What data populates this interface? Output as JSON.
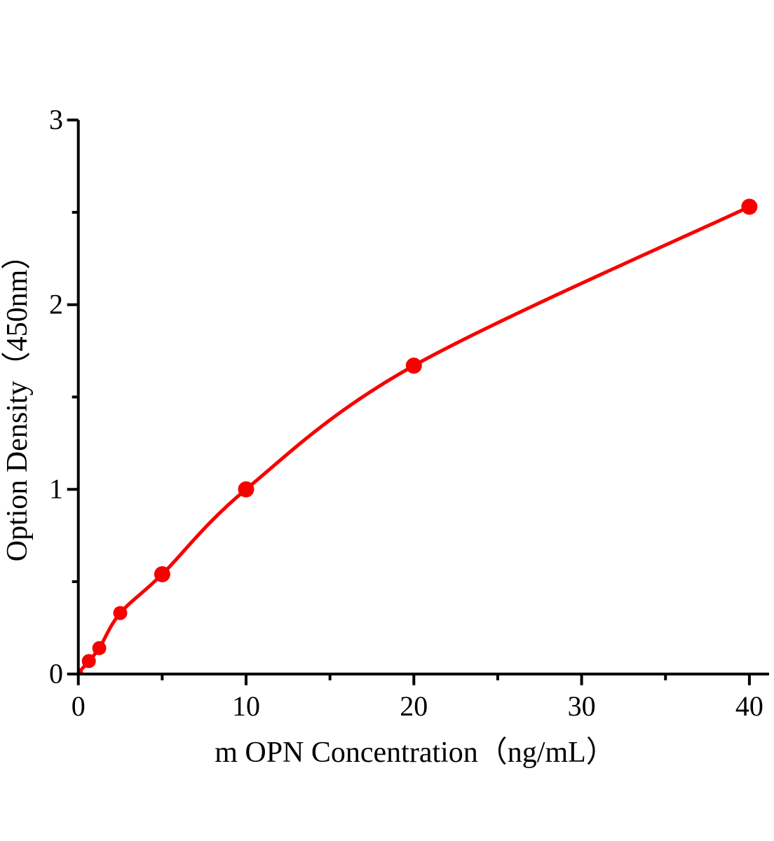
{
  "chart_data": {
    "type": "line",
    "title": "",
    "xlabel": "m OPN Concentration（ng/mL）",
    "ylabel": "Option Density（450nm）",
    "x": [
      0,
      0.625,
      1.25,
      2.5,
      5,
      10,
      20,
      40
    ],
    "series": [
      {
        "values": [
          0.005,
          0.07,
          0.14,
          0.33,
          0.54,
          1.0,
          1.67,
          2.53
        ],
        "color": "#f80000",
        "marker": "circle"
      }
    ],
    "xlim": [
      0,
      40
    ],
    "ylim": [
      0,
      3
    ],
    "x_major_ticks": [
      0,
      10,
      20,
      30,
      40
    ],
    "x_minor_ticks": [
      5,
      15,
      25,
      35
    ],
    "y_major_ticks": [
      0,
      1,
      2,
      3
    ],
    "y_minor_ticks": [
      0.5,
      1.5,
      2.5
    ],
    "x_tick_labels": [
      "0",
      "10",
      "20",
      "30",
      "40"
    ],
    "y_tick_labels": [
      "0",
      "1",
      "2",
      "3"
    ],
    "grid": false,
    "legend": "none",
    "axis_color": "#000000",
    "background_color": "#ffffff"
  }
}
